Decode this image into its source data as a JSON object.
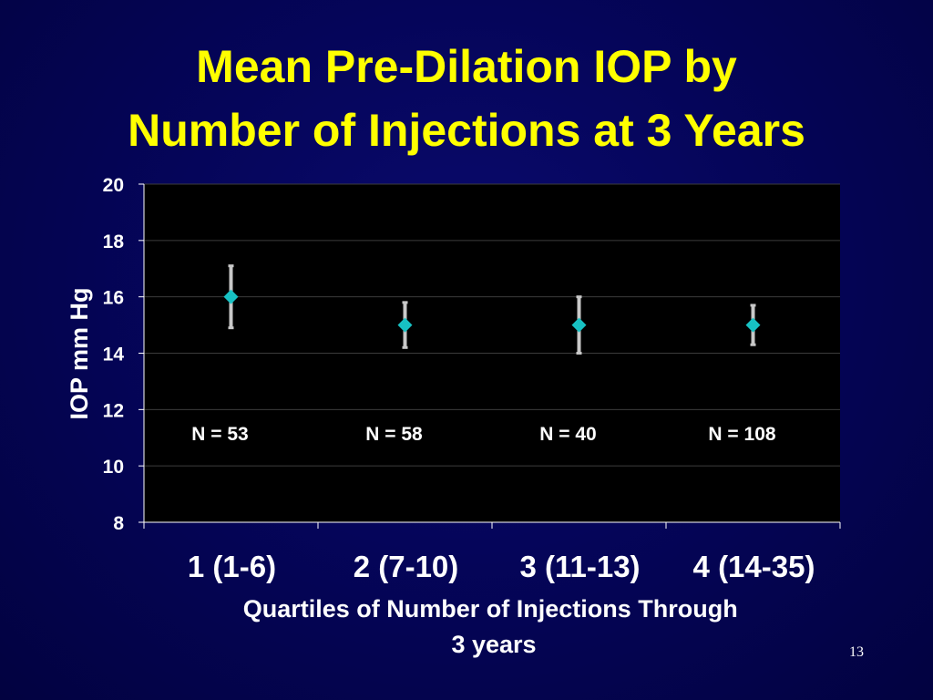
{
  "title": {
    "line1": "Mean Pre-Dilation IOP by",
    "line2": "Number of Injections at 3 Years"
  },
  "slide_number": "13",
  "colors": {
    "background": "#05055a",
    "title": "#ffff00",
    "plot_area": "#000000",
    "marker": "#17c1c3",
    "error_bar": "#c8c8c8",
    "text": "#ffffff"
  },
  "chart_data": {
    "type": "scatter",
    "title": "",
    "ylabel": "IOP mm Hg",
    "xlabel_lines": [
      "Quartiles of Number of Injections Through",
      "3 years"
    ],
    "ylim": [
      8,
      20
    ],
    "yticks": [
      20,
      18,
      16,
      14,
      12,
      10,
      8
    ],
    "grid": true,
    "categories": [
      "1 (1-6)",
      "2 (7-10)",
      "3 (11-13)",
      "4 (14-35)"
    ],
    "values": [
      16,
      15,
      15,
      15
    ],
    "error_low": [
      14.9,
      14.2,
      14.0,
      14.3
    ],
    "error_high": [
      17.1,
      15.8,
      16.0,
      15.7
    ],
    "annotations": [
      "N = 53",
      "N = 58",
      "N = 40",
      "N = 108"
    ]
  }
}
